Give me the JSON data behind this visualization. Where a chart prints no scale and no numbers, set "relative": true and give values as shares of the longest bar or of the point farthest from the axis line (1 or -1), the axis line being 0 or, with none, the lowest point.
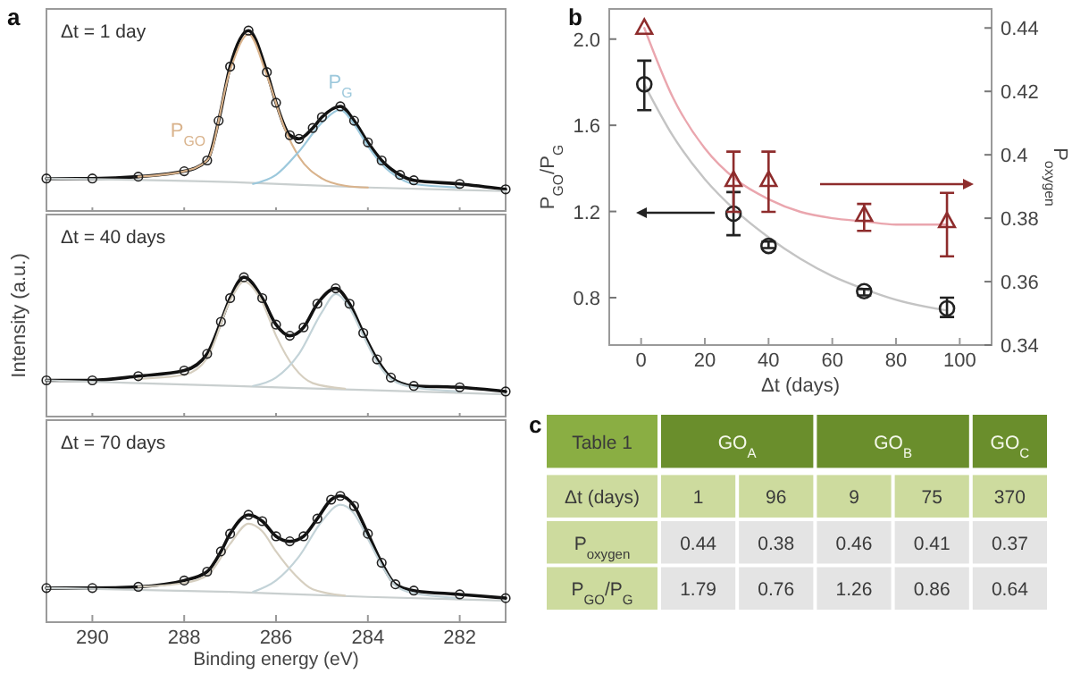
{
  "chart_data": [
    {
      "type": "line",
      "title": "a",
      "relative": true,
      "xlim": [
        291,
        281
      ],
      "xticks": [
        290,
        288,
        286,
        284,
        282
      ],
      "tick_labels": false,
      "annotations": [
        "Δt = 1 day"
      ],
      "series": [
        {
          "type": "scatter",
          "marker": "circle",
          "color": "#222222",
          "x": [
            291,
            290,
            289,
            288,
            287.5,
            287.25,
            287,
            286.6,
            286.2,
            286,
            285.7,
            285.5,
            285.2,
            285,
            284.6,
            284.3,
            284,
            283.7,
            283.3,
            283,
            282,
            281
          ],
          "values": [
            0.18,
            0.18,
            0.19,
            0.22,
            0.28,
            0.5,
            0.8,
            1.0,
            0.77,
            0.6,
            0.42,
            0.4,
            0.46,
            0.52,
            0.58,
            0.5,
            0.38,
            0.28,
            0.2,
            0.17,
            0.15,
            0.12
          ]
        },
        {
          "type": "line",
          "color": "#111111",
          "x": [
            291,
            290,
            289,
            288,
            287.5,
            287.25,
            287,
            286.6,
            286.2,
            286,
            285.7,
            285.5,
            285.2,
            285,
            284.6,
            284.3,
            284,
            283.7,
            283.3,
            283,
            282,
            281
          ],
          "values": [
            0.18,
            0.18,
            0.19,
            0.22,
            0.28,
            0.5,
            0.8,
            1.0,
            0.77,
            0.6,
            0.42,
            0.4,
            0.46,
            0.52,
            0.58,
            0.5,
            0.38,
            0.28,
            0.2,
            0.17,
            0.15,
            0.12
          ]
        },
        {
          "type": "line",
          "color": "#c9cfcf",
          "x": [
            291,
            287,
            284,
            281
          ],
          "values": [
            0.18,
            0.16,
            0.13,
            0.11
          ]
        },
        {
          "type": "line",
          "name": "P$_{GO}$",
          "color": "#d9b38c",
          "x": [
            289,
            288,
            287.5,
            287,
            286.6,
            286.2,
            285.8,
            285.5,
            285,
            284.5,
            284
          ],
          "values": [
            0.19,
            0.22,
            0.28,
            0.78,
            0.98,
            0.75,
            0.45,
            0.3,
            0.18,
            0.14,
            0.13
          ]
        },
        {
          "type": "line",
          "name": "P$_{G}$",
          "color": "#9cc8dc",
          "x": [
            286.5,
            286,
            285.5,
            285,
            284.6,
            284.3,
            284,
            283.7,
            283.3,
            283,
            282
          ],
          "values": [
            0.15,
            0.2,
            0.33,
            0.49,
            0.56,
            0.48,
            0.36,
            0.26,
            0.18,
            0.15,
            0.13
          ]
        }
      ]
    },
    {
      "type": "line",
      "relative": true,
      "ylabel": "Intensity (a.u.)",
      "xlim": [
        291,
        281
      ],
      "xticks": [
        290,
        288,
        286,
        284,
        282
      ],
      "tick_labels": false,
      "annotations": [
        "Δt = 40 days"
      ],
      "series": [
        {
          "type": "scatter",
          "marker": "circle",
          "color": "#222222",
          "x": [
            291,
            290,
            289,
            288,
            287.5,
            287.2,
            287,
            286.7,
            286.3,
            286,
            285.7,
            285.4,
            285.1,
            284.7,
            284.4,
            284.1,
            283.8,
            283.5,
            283,
            282,
            281
          ],
          "values": [
            0.26,
            0.26,
            0.29,
            0.33,
            0.45,
            0.68,
            0.85,
            1.0,
            0.85,
            0.66,
            0.58,
            0.64,
            0.81,
            0.92,
            0.81,
            0.6,
            0.41,
            0.28,
            0.22,
            0.21,
            0.18
          ]
        },
        {
          "type": "line",
          "color": "#111111",
          "x": [
            291,
            290,
            289,
            288,
            287.5,
            287.2,
            287,
            286.7,
            286.3,
            286,
            285.7,
            285.4,
            285.1,
            284.7,
            284.4,
            284.1,
            283.8,
            283.5,
            283,
            282,
            281
          ],
          "values": [
            0.26,
            0.26,
            0.29,
            0.33,
            0.45,
            0.68,
            0.85,
            1.0,
            0.85,
            0.66,
            0.58,
            0.64,
            0.81,
            0.92,
            0.81,
            0.6,
            0.41,
            0.28,
            0.22,
            0.21,
            0.18
          ]
        },
        {
          "type": "line",
          "color": "#c9cfcf",
          "x": [
            291,
            287,
            284,
            281
          ],
          "values": [
            0.26,
            0.22,
            0.19,
            0.16
          ]
        },
        {
          "type": "line",
          "color": "#d6cfc0",
          "x": [
            289,
            288,
            287.5,
            287,
            286.7,
            286.3,
            286,
            285.6,
            285.2,
            284.5
          ],
          "values": [
            0.27,
            0.3,
            0.42,
            0.83,
            0.97,
            0.82,
            0.58,
            0.35,
            0.24,
            0.2
          ]
        },
        {
          "type": "line",
          "color": "#c3d3d8",
          "x": [
            286.5,
            286,
            285.5,
            285,
            284.7,
            284.4,
            284.1,
            283.8,
            283.5,
            283,
            282
          ],
          "values": [
            0.22,
            0.28,
            0.45,
            0.75,
            0.88,
            0.78,
            0.58,
            0.39,
            0.27,
            0.21,
            0.18
          ]
        }
      ]
    },
    {
      "type": "line",
      "relative": true,
      "xlabel": "Binding energy (eV)",
      "xlim": [
        291,
        281
      ],
      "xticks": [
        290,
        288,
        286,
        284,
        282
      ],
      "tick_labels": "x",
      "annotations": [
        "Δt = 70 days"
      ],
      "series": [
        {
          "type": "scatter",
          "marker": "circle",
          "color": "#222222",
          "x": [
            291,
            290,
            289,
            288,
            287.5,
            287.2,
            287,
            286.6,
            286.3,
            286,
            285.7,
            285.4,
            285.1,
            284.8,
            284.6,
            284.3,
            284,
            283.7,
            283.4,
            283,
            282,
            281
          ],
          "values": [
            0.27,
            0.27,
            0.28,
            0.33,
            0.4,
            0.56,
            0.7,
            0.85,
            0.8,
            0.68,
            0.64,
            0.68,
            0.82,
            0.97,
            1.0,
            0.92,
            0.7,
            0.47,
            0.3,
            0.25,
            0.22,
            0.19
          ]
        },
        {
          "type": "line",
          "color": "#111111",
          "x": [
            291,
            290,
            289,
            288,
            287.5,
            287.2,
            287,
            286.6,
            286.3,
            286,
            285.7,
            285.4,
            285.1,
            284.8,
            284.6,
            284.3,
            284,
            283.7,
            283.4,
            283,
            282,
            281
          ],
          "values": [
            0.27,
            0.27,
            0.28,
            0.33,
            0.4,
            0.56,
            0.7,
            0.85,
            0.8,
            0.68,
            0.64,
            0.68,
            0.82,
            0.97,
            1.0,
            0.92,
            0.7,
            0.47,
            0.3,
            0.25,
            0.22,
            0.19
          ]
        },
        {
          "type": "line",
          "color": "#c9cfcf",
          "x": [
            291,
            287,
            284,
            281
          ],
          "values": [
            0.27,
            0.24,
            0.2,
            0.17
          ]
        },
        {
          "type": "line",
          "color": "#d6cfc0",
          "x": [
            289,
            288,
            287.5,
            287,
            286.6,
            286.3,
            286,
            285.6,
            285.2,
            284.5
          ],
          "values": [
            0.28,
            0.31,
            0.37,
            0.62,
            0.78,
            0.72,
            0.56,
            0.38,
            0.26,
            0.21
          ]
        },
        {
          "type": "line",
          "color": "#c3d3d8",
          "x": [
            286.5,
            286,
            285.5,
            285,
            284.6,
            284.3,
            284,
            283.7,
            283.4,
            283,
            282
          ],
          "values": [
            0.24,
            0.33,
            0.52,
            0.8,
            0.93,
            0.86,
            0.66,
            0.45,
            0.29,
            0.23,
            0.19
          ]
        }
      ]
    },
    {
      "type": "scatter",
      "title": "b",
      "xlabel": "Δt (days)",
      "ylabel": "P$_{GO}$/P$_{G}$",
      "y2label": "P$_{oxygen}$",
      "xlim": [
        -10,
        110
      ],
      "xticks": [
        0,
        20,
        40,
        60,
        80,
        100
      ],
      "ylim": [
        0.58,
        2.14
      ],
      "yticks": [
        {
          "value": 0.8,
          "label": "0.8"
        },
        {
          "value": 1.2,
          "label": "1.2"
        },
        {
          "value": 1.6,
          "label": "1.6"
        },
        {
          "value": 2,
          "label": "2.0"
        }
      ],
      "y2lim": [
        0.34,
        0.446
      ],
      "y2ticks": [
        0.34,
        0.36,
        0.38,
        0.4,
        0.42,
        0.44
      ],
      "series": [
        {
          "type": "line",
          "color": "#c4c4c4",
          "x": [
            1,
            10,
            20,
            30,
            40,
            50,
            60,
            70,
            80,
            96
          ],
          "values": [
            1.79,
            1.55,
            1.35,
            1.2,
            1.08,
            0.98,
            0.9,
            0.84,
            0.79,
            0.74
          ]
        },
        {
          "type": "line",
          "axis": "y2",
          "color": "#eaa6ae",
          "x": [
            1,
            10,
            20,
            30,
            40,
            50,
            60,
            70,
            80,
            96
          ],
          "values": [
            0.44,
            0.418,
            0.402,
            0.392,
            0.386,
            0.382,
            0.38,
            0.379,
            0.378,
            0.378
          ]
        },
        {
          "type": "scatter",
          "marker": "circle",
          "color": "#222222",
          "x": [
            1,
            29,
            40,
            70,
            96
          ],
          "values": [
            1.79,
            1.19,
            1.04,
            0.83,
            0.75
          ],
          "errors": [
            [
              1.67,
              1.9
            ],
            [
              1.09,
              1.29
            ],
            [
              1.03,
              1.06
            ],
            [
              0.81,
              0.84
            ],
            [
              0.71,
              0.8
            ]
          ]
        },
        {
          "type": "scatter",
          "axis": "y2",
          "marker": "triangle",
          "color": "#8e2c2c",
          "x": [
            1,
            29,
            40,
            70,
            96
          ],
          "values": [
            0.44,
            0.392,
            0.392,
            0.381,
            0.379
          ],
          "errors": [
            null,
            [
              0.382,
              0.401
            ],
            [
              0.382,
              0.401
            ],
            [
              0.376,
              0.3845
            ],
            [
              0.368,
              0.388
            ]
          ]
        }
      ]
    },
    {
      "type": "other",
      "title": "c",
      "cell_labels": [
        [
          "Table 1",
          "GO$_{A}$",
          null,
          "GO$_{B}$",
          null,
          "GO$_{C}$"
        ],
        [
          "Δt (days)",
          "1",
          "96",
          "9",
          "75",
          "370"
        ],
        [
          "P$_{oxygen}$",
          "0.44",
          "0.38",
          "0.46",
          "0.41",
          "0.37"
        ],
        [
          "P$_{GO}$/P$_{G}$",
          "1.79",
          "0.76",
          "1.26",
          "0.86",
          "0.64"
        ]
      ]
    }
  ]
}
